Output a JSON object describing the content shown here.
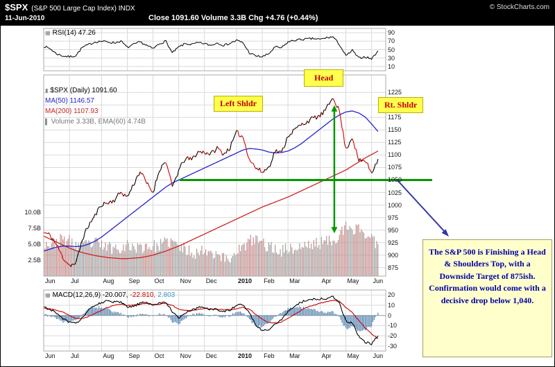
{
  "header": {
    "symbol": "$SPX",
    "name": "(S&P 500 Large Cap Index) INDX",
    "copyright": "© StockCharts.com",
    "date": "11-Jun-2010",
    "quote": "Close 1091.60 Volume 3.3B Chg +4.76 (+0.44%)"
  },
  "rsi_panel": {
    "label": "RSI(14) 47.26"
  },
  "price_panel": {
    "legend_symbol": "$SPX (Daily) 1091.60",
    "legend_ma50": "MA(50) 1146.57",
    "legend_ma200": "MA(200) 1107.93",
    "legend_volume": "Volume 3.33B, EMA(60) 4.74B"
  },
  "macd_panel": {
    "label_main": "MACD(12,26,9) -20.007,",
    "label_signal": "-22.810,",
    "label_hist": "2.803"
  },
  "annotations": {
    "left_shoulder": "Left Shldr",
    "head": "Head",
    "right_shoulder": "Rt. Shldr",
    "note": "The S&P 500 is Finishing a Head & Shoulders Top, with a Downside Target of 875ish. Confirmation would come with a decisive drop below 1,040."
  },
  "colors": {
    "ma50": "#2222cc",
    "ma200": "#cc2222",
    "price_up": "#000000",
    "price_down": "#cc0000",
    "volume_up": "#9a9a9a",
    "volume_down": "#c08484",
    "macd_line": "#000000",
    "macd_signal": "#cc0000",
    "macd_hist": "#4477aa",
    "annotation_green": "#009900",
    "arrow_blue": "#3333aa",
    "annotation_bg": "#ffff4d",
    "note_bg": "#ffffcc",
    "note_text": "#0000a0"
  },
  "time_axis": {
    "month_labels": [
      "Jun",
      "Jul",
      "Aug",
      "Sep",
      "Oct",
      "Nov",
      "Dec",
      "2010",
      "Feb",
      "Mar",
      "Apr",
      "May",
      "Jun"
    ],
    "bold_label": "2010",
    "weeks_per_month": [
      4,
      5,
      4,
      4,
      4,
      4,
      5,
      4,
      4,
      5,
      4,
      4,
      2
    ]
  },
  "chart_data": [
    {
      "type": "line",
      "panel": "rsi",
      "title": "RSI(14) 47.26",
      "ylim": [
        0,
        100
      ],
      "yticks": [
        90,
        70,
        50,
        30,
        10
      ],
      "values_weekly": [
        58,
        52,
        40,
        35,
        33,
        36,
        55,
        62,
        68,
        70,
        68,
        66,
        70,
        55,
        62,
        68,
        60,
        52,
        64,
        70,
        42,
        56,
        64,
        62,
        66,
        64,
        60,
        66,
        60,
        65,
        72,
        66,
        42,
        35,
        33,
        40,
        56,
        54,
        68,
        72,
        74,
        75,
        76,
        74,
        78,
        80,
        62,
        35,
        48,
        30,
        33,
        28,
        47
      ]
    },
    {
      "type": "line",
      "panel": "price",
      "title": "$SPX (Daily) 1091.60",
      "ylim": [
        858,
        1260
      ],
      "yticks": [
        1225,
        1200,
        1175,
        1150,
        1125,
        1100,
        1075,
        1050,
        1025,
        1000,
        975,
        950,
        925,
        900,
        875
      ],
      "series": [
        {
          "name": "$SPX Close",
          "color": "#000000",
          "values_weekly": [
            945,
            940,
            920,
            895,
            880,
            882,
            932,
            960,
            979,
            1002,
            1004,
            1010,
            1026,
            1016,
            1042,
            1068,
            1044,
            1025,
            1071,
            1088,
            1036,
            1069,
            1093,
            1091,
            1106,
            1106,
            1102,
            1114,
            1102,
            1115,
            1145,
            1136,
            1092,
            1074,
            1066,
            1075,
            1109,
            1104,
            1139,
            1150,
            1160,
            1167,
            1174,
            1178,
            1192,
            1217,
            1187,
            1111,
            1136,
            1088,
            1089,
            1065,
            1092
          ]
        },
        {
          "name": "MA(50) 1146.57",
          "color": "#2222cc",
          "values_weekly": [
            908,
            912,
            916,
            918,
            918,
            917,
            918,
            922,
            928,
            936,
            946,
            956,
            966,
            976,
            986,
            996,
            1006,
            1016,
            1026,
            1036,
            1044,
            1050,
            1056,
            1062,
            1068,
            1074,
            1080,
            1086,
            1092,
            1098,
            1104,
            1110,
            1113,
            1112,
            1110,
            1106,
            1104,
            1105,
            1108,
            1114,
            1122,
            1132,
            1142,
            1152,
            1162,
            1172,
            1180,
            1186,
            1188,
            1184,
            1176,
            1162,
            1147
          ]
        },
        {
          "name": "MA(200) 1107.93",
          "color": "#cc2222",
          "values_weekly": [
            938,
            932,
            926,
            920,
            914,
            909,
            905,
            902,
            899,
            897,
            895,
            894,
            893,
            893,
            894,
            895,
            897,
            900,
            904,
            908,
            913,
            918,
            924,
            930,
            936,
            942,
            948,
            954,
            960,
            966,
            972,
            978,
            984,
            990,
            996,
            1001,
            1006,
            1011,
            1016,
            1022,
            1028,
            1034,
            1040,
            1046,
            1052,
            1058,
            1064,
            1070,
            1078,
            1086,
            1094,
            1101,
            1108
          ]
        }
      ],
      "volume_weekly": [
        5.2,
        5.0,
        5.4,
        5.8,
        5.5,
        4.8,
        4.6,
        5.0,
        5.2,
        4.8,
        4.6,
        4.4,
        4.6,
        4.8,
        4.6,
        4.4,
        4.8,
        4.6,
        4.8,
        5.2,
        5.4,
        4.6,
        4.2,
        3.8,
        3.6,
        4.2,
        3.8,
        3.6,
        2.8,
        2.6,
        4.2,
        4.4,
        5.4,
        5.8,
        5.2,
        4.6,
        4.2,
        4.0,
        4.4,
        4.2,
        4.6,
        4.8,
        5.0,
        5.2,
        5.4,
        5.8,
        6.4,
        7.6,
        6.8,
        8.0,
        6.4,
        5.8,
        5.0
      ],
      "volume_axis": [
        {
          "value": 10,
          "label": "10.0B"
        },
        {
          "value": 7.5,
          "label": "7.5B"
        },
        {
          "value": 5,
          "label": "5.0B"
        },
        {
          "value": 2.5,
          "label": "2.5B"
        }
      ],
      "neckline_price": 1050,
      "downside_target": 875,
      "measured_move": {
        "from": 1198,
        "to": 945
      }
    },
    {
      "type": "line",
      "panel": "macd",
      "title": "MACD(12,26,9) -20.007, -22.810, 2.803",
      "ylim": [
        -35,
        25
      ],
      "yticks": [
        20,
        10,
        0,
        -10,
        -20,
        -30
      ],
      "series": [
        {
          "name": "MACD -20.007",
          "color": "#000000",
          "values_weekly": [
            8,
            6,
            2,
            -3,
            -7,
            -8,
            -2,
            5,
            10,
            13,
            14,
            13,
            13,
            8,
            9,
            12,
            13,
            10,
            12,
            13,
            4,
            -2,
            2,
            5,
            8,
            8,
            6,
            6,
            4,
            5,
            10,
            11,
            2,
            -9,
            -15,
            -14,
            -8,
            -4,
            4,
            9,
            13,
            15,
            16,
            16,
            17,
            18,
            12,
            -5,
            -8,
            -20,
            -26,
            -28,
            -20
          ],
          "current": -20.007
        },
        {
          "name": "Signal -22.810",
          "color": "#cc0000",
          "values_weekly": [
            7,
            6.5,
            5,
            3,
            0,
            -3,
            -3,
            -1,
            2,
            5,
            8,
            10,
            11,
            10,
            10,
            11,
            12,
            11,
            11,
            12,
            10,
            6,
            5,
            5,
            6,
            7,
            6.5,
            6,
            5.5,
            5.5,
            6.5,
            8,
            6,
            1,
            -4,
            -7,
            -7.5,
            -6.5,
            -3,
            1,
            5,
            8,
            10,
            12,
            13.5,
            15,
            14,
            8,
            3,
            -5,
            -12,
            -18,
            -22.8
          ],
          "current": -22.81
        }
      ],
      "histogram_current": 2.803
    }
  ]
}
